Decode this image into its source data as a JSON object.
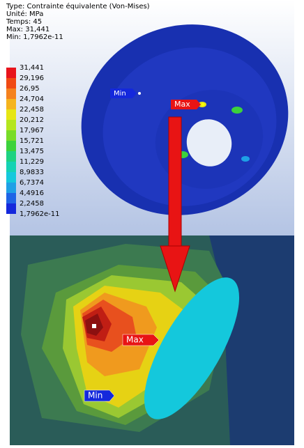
{
  "header": {
    "lines": [
      "Type: Contrainte équivalente (Von-Mises)",
      "Unité: MPa",
      "Temps: 45",
      "Max: 31,441",
      "Min: 1,7962e-11"
    ]
  },
  "legend": {
    "labels": [
      "31,441",
      "29,196",
      "26,95",
      "24,704",
      "22,458",
      "20,212",
      "17,967",
      "15,721",
      "13,475",
      "11,229",
      "8,9833",
      "6,7374",
      "4,4916",
      "2,2458",
      "1,7962e-11"
    ],
    "colors": [
      "#e8141c",
      "#f04a14",
      "#f5821e",
      "#f5b41e",
      "#e6e614",
      "#b4e61e",
      "#78dc28",
      "#3cd23c",
      "#1ed282",
      "#14d2b4",
      "#14c8dc",
      "#1ea0e6",
      "#1e64e6",
      "#1428dc"
    ]
  },
  "top_view": {
    "min_label": "Min",
    "max_label": "Max"
  },
  "zoom_view": {
    "min_label": "Min",
    "max_label": "Max"
  }
}
